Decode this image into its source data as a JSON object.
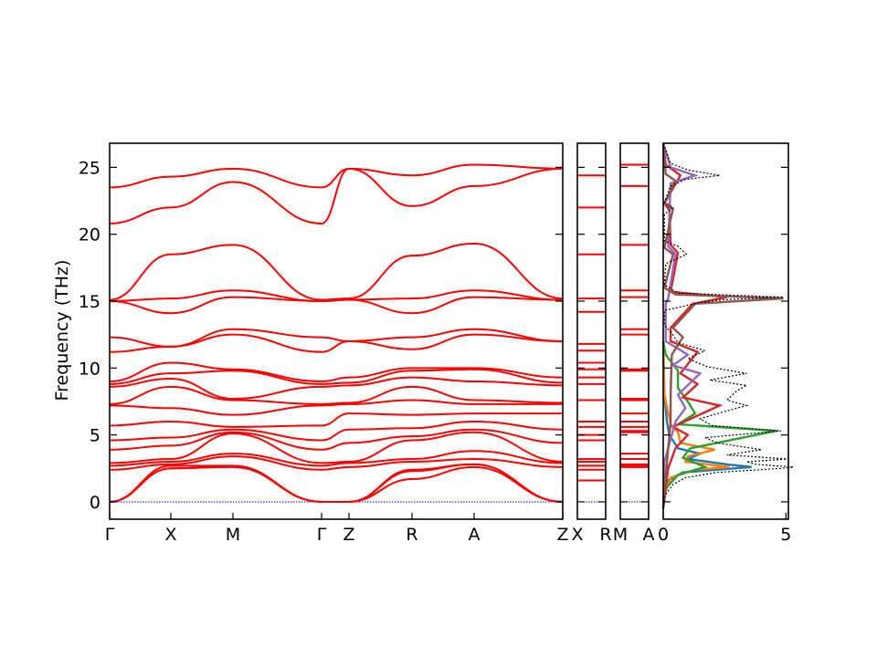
{
  "chart_data": {
    "type": "line",
    "ylabel": "Frequency (THz)",
    "ylim": [
      -1.3,
      26.8
    ],
    "yticks": [
      0,
      5,
      10,
      15,
      20,
      25
    ],
    "colors": {
      "bands": "#ff0000",
      "zero": "#0000ff",
      "total_dos": "#000000",
      "pdos": [
        "#1f77b4",
        "#ff7f0e",
        "#2ca02c",
        "#d62728",
        "#9467bd",
        "#8c564b"
      ]
    },
    "band_panels": [
      {
        "segments": [
          {
            "from": "Γ",
            "to": "X"
          },
          {
            "from": "X",
            "to": "M"
          },
          {
            "from": "M",
            "to": "Γ"
          },
          {
            "from": "Γ",
            "to": "Z"
          },
          {
            "from": "Z",
            "to": "R"
          },
          {
            "from": "R",
            "to": "A"
          },
          {
            "from": "A",
            "to": "Z"
          }
        ],
        "tick_labels": [
          "Γ",
          "X",
          "M",
          "Γ",
          "Z",
          "R",
          "A",
          "Z"
        ]
      },
      {
        "segments": [
          {
            "from": "X",
            "to": "R"
          }
        ],
        "tick_labels": [
          "X",
          "R"
        ]
      },
      {
        "segments": [
          {
            "from": "M",
            "to": "A"
          }
        ],
        "tick_labels": [
          "M",
          "A"
        ]
      }
    ],
    "bands": {
      "Γ": [
        0,
        0,
        0,
        2.4,
        2.7,
        2.9,
        3.9,
        4.6,
        5.7,
        7.2,
        7.3,
        8.6,
        8.8,
        9.0,
        11.2,
        12.3,
        15.0,
        15.0,
        15.1,
        20.8,
        23.5
      ],
      "X": [
        2.5,
        2.5,
        2.7,
        2.8,
        3.0,
        3.2,
        4.2,
        4.8,
        6.0,
        7.0,
        8.6,
        9.2,
        9.6,
        10.4,
        11.6,
        11.6,
        14.1,
        15.2,
        18.5,
        22.0,
        24.3
      ],
      "M": [
        2.6,
        2.7,
        2.7,
        3.4,
        3.6,
        5.1,
        5.2,
        5.4,
        5.6,
        6.5,
        7.6,
        7.7,
        9.8,
        9.9,
        12.5,
        12.9,
        15.3,
        15.8,
        19.2,
        23.9,
        24.9
      ],
      "Z": [
        0,
        0,
        0,
        2.6,
        2.9,
        3.0,
        4.4,
        5.4,
        6.6,
        7.3,
        7.4,
        8.7,
        8.9,
        9.3,
        12.0,
        12.0,
        15.1,
        15.1,
        15.2,
        24.9,
        24.9
      ],
      "R": [
        1.7,
        2.3,
        2.4,
        3.0,
        3.2,
        4.6,
        4.9,
        5.5,
        6.5,
        7.6,
        8.6,
        9.3,
        9.8,
        10.0,
        11.4,
        12.3,
        14.1,
        15.2,
        18.4,
        22.1,
        24.4
      ],
      "A": [
        2.6,
        2.8,
        2.8,
        3.2,
        3.8,
        5.2,
        5.4,
        6.0,
        6.6,
        7.3,
        7.6,
        9.0,
        9.9,
        10.0,
        12.5,
        12.9,
        15.3,
        15.8,
        19.3,
        23.6,
        25.2
      ],
      "XR": [
        1.6,
        2.4,
        2.7,
        3.0,
        3.2,
        4.6,
        5.0,
        5.6,
        6.0,
        7.6,
        8.8,
        9.3,
        9.9,
        10.4,
        11.3,
        11.8,
        14.2,
        15.2,
        18.5,
        22.0,
        24.4
      ],
      "MA": [
        2.6,
        2.7,
        2.8,
        3.2,
        3.6,
        5.2,
        5.3,
        5.6,
        6.0,
        6.6,
        7.6,
        7.7,
        9.8,
        9.9,
        12.5,
        12.9,
        15.3,
        15.8,
        19.2,
        23.6,
        25.2
      ]
    },
    "dos": {
      "xlim": [
        0,
        5.1
      ],
      "xticks": [
        0,
        5
      ],
      "total": [
        [
          -0.5,
          0
        ],
        [
          0.5,
          0.08
        ],
        [
          1.3,
          0.4
        ],
        [
          1.8,
          0.9
        ],
        [
          2.2,
          2.2
        ],
        [
          2.5,
          4.8
        ],
        [
          2.6,
          5.3
        ],
        [
          2.8,
          3.8
        ],
        [
          3.0,
          3.4
        ],
        [
          3.2,
          5.1
        ],
        [
          3.5,
          2.6
        ],
        [
          3.9,
          4.0
        ],
        [
          4.4,
          2.2
        ],
        [
          4.8,
          1.7
        ],
        [
          5.3,
          4.8
        ],
        [
          5.7,
          2.0
        ],
        [
          6.2,
          1.5
        ],
        [
          6.6,
          2.2
        ],
        [
          7.2,
          3.4
        ],
        [
          7.6,
          2.6
        ],
        [
          8.3,
          3.0
        ],
        [
          8.7,
          3.4
        ],
        [
          9.1,
          1.9
        ],
        [
          9.6,
          3.4
        ],
        [
          10.1,
          1.8
        ],
        [
          10.7,
          1.0
        ],
        [
          11.3,
          1.7
        ],
        [
          11.9,
          0.6
        ],
        [
          12.6,
          0.35
        ],
        [
          13.2,
          0.05
        ],
        [
          14.3,
          0.05
        ],
        [
          14.9,
          1.5
        ],
        [
          15.1,
          2.4
        ],
        [
          15.3,
          4.9
        ],
        [
          15.6,
          0.6
        ],
        [
          16.2,
          0.05
        ],
        [
          17.8,
          0.1
        ],
        [
          18.5,
          0.95
        ],
        [
          19.1,
          0.6
        ],
        [
          19.5,
          0.05
        ],
        [
          21.5,
          0.05
        ],
        [
          22.0,
          0.4
        ],
        [
          22.4,
          0.05
        ],
        [
          23.6,
          0.3
        ],
        [
          24.1,
          0.9
        ],
        [
          24.4,
          2.3
        ],
        [
          24.8,
          1.0
        ],
        [
          25.3,
          0.3
        ],
        [
          26.8,
          0
        ]
      ],
      "projected": [
        [
          [
            -0.5,
            0
          ],
          [
            0.5,
            0.05
          ],
          [
            1.6,
            0.2
          ],
          [
            2.2,
            0.8
          ],
          [
            2.6,
            3.6
          ],
          [
            2.8,
            2.6
          ],
          [
            3.2,
            1.0
          ],
          [
            3.6,
            1.5
          ],
          [
            4.0,
            0.6
          ],
          [
            5.0,
            0.25
          ],
          [
            6.0,
            0.15
          ],
          [
            8.0,
            0.05
          ],
          [
            12.0,
            0
          ]
        ],
        [
          [
            -0.5,
            0
          ],
          [
            0.5,
            0.05
          ],
          [
            1.8,
            0.3
          ],
          [
            2.4,
            1.3
          ],
          [
            2.6,
            2.7
          ],
          [
            3.0,
            0.9
          ],
          [
            3.4,
            1.0
          ],
          [
            3.9,
            2.1
          ],
          [
            4.4,
            0.7
          ],
          [
            5.2,
            0.6
          ],
          [
            5.8,
            0.3
          ],
          [
            8.0,
            0.05
          ],
          [
            12.0,
            0
          ]
        ],
        [
          [
            -0.5,
            0
          ],
          [
            1.0,
            0.1
          ],
          [
            2.0,
            0.6
          ],
          [
            2.6,
            1.7
          ],
          [
            3.3,
            0.8
          ],
          [
            4.0,
            1.1
          ],
          [
            5.3,
            4.6
          ],
          [
            5.8,
            0.6
          ],
          [
            6.6,
            1.3
          ],
          [
            7.5,
            1.0
          ],
          [
            8.5,
            0.6
          ],
          [
            9.8,
            0.6
          ],
          [
            11.0,
            0.1
          ],
          [
            12.0,
            0
          ]
        ],
        [
          [
            -0.5,
            0
          ],
          [
            2.5,
            0.2
          ],
          [
            4.0,
            0.5
          ],
          [
            5.0,
            1.0
          ],
          [
            5.6,
            0.4
          ],
          [
            7.2,
            2.3
          ],
          [
            7.8,
            0.8
          ],
          [
            8.8,
            1.4
          ],
          [
            9.6,
            0.7
          ],
          [
            11.2,
            1.4
          ],
          [
            12.0,
            0.3
          ],
          [
            13.0,
            0.3
          ],
          [
            14.8,
            1.2
          ],
          [
            15.3,
            2.6
          ],
          [
            15.7,
            0.3
          ],
          [
            18.6,
            0.6
          ],
          [
            19.2,
            0.3
          ],
          [
            21.8,
            0.25
          ],
          [
            22.3,
            0.05
          ],
          [
            24.4,
            0.7
          ],
          [
            25.2,
            0.1
          ],
          [
            26.8,
            0
          ]
        ],
        [
          [
            -0.5,
            0
          ],
          [
            3.0,
            0.05
          ],
          [
            6.0,
            0.5
          ],
          [
            7.0,
            0.9
          ],
          [
            8.0,
            0.6
          ],
          [
            9.6,
            1.5
          ],
          [
            10.2,
            0.4
          ],
          [
            11.0,
            1.0
          ],
          [
            12.0,
            0.1
          ],
          [
            14.8,
            0.1
          ],
          [
            15.2,
            0.2
          ],
          [
            18.5,
            0.5
          ],
          [
            19.1,
            0.2
          ],
          [
            23.8,
            0.3
          ],
          [
            24.4,
            1.3
          ],
          [
            25.0,
            0.3
          ],
          [
            26.8,
            0
          ]
        ],
        [
          [
            -0.5,
            0
          ],
          [
            4.0,
            0.2
          ],
          [
            6.0,
            0.3
          ],
          [
            8.0,
            0.3
          ],
          [
            11.0,
            0.35
          ],
          [
            12.3,
            0.8
          ],
          [
            13.0,
            0.4
          ],
          [
            14.8,
            1.3
          ],
          [
            15.2,
            4.9
          ],
          [
            15.5,
            0.5
          ],
          [
            16.0,
            0.05
          ],
          [
            18.5,
            0.4
          ],
          [
            19.0,
            0.05
          ],
          [
            21.9,
            0.4
          ],
          [
            22.3,
            0.05
          ],
          [
            24.0,
            0.5
          ],
          [
            24.5,
            0.1
          ],
          [
            26.8,
            0
          ]
        ]
      ]
    }
  }
}
